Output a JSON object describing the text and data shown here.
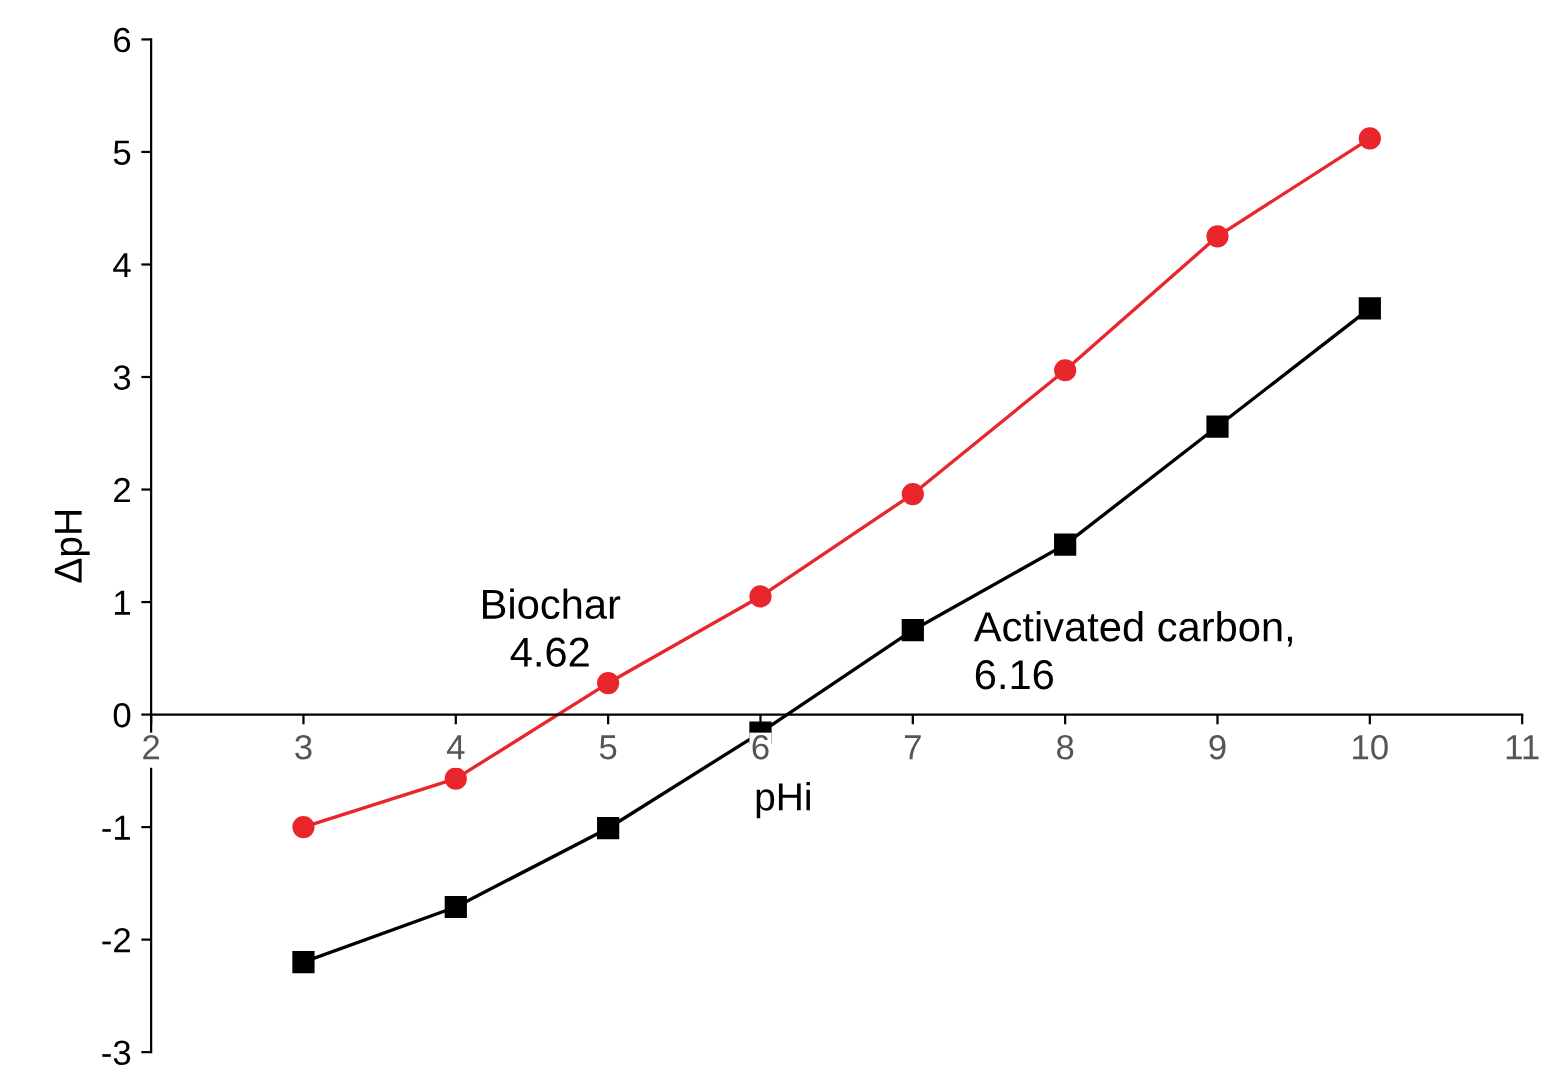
{
  "chart_data": {
    "type": "line",
    "xlabel": "pHi",
    "ylabel": "ΔpH",
    "x": [
      3,
      4,
      5,
      6,
      7,
      8,
      9,
      10
    ],
    "series": [
      {
        "color": "#e8262b",
        "marker": "circle",
        "values": [
          -1.0,
          -0.57,
          0.28,
          1.05,
          1.96,
          3.06,
          4.25,
          5.12
        ]
      },
      {
        "color": "#000000",
        "marker": "square",
        "values": [
          -2.2,
          -1.71,
          -1.01,
          -0.16,
          0.75,
          1.51,
          2.56,
          3.61
        ]
      }
    ],
    "xlim": [
      2,
      11
    ],
    "xticks": [
      2,
      3,
      4,
      5,
      6,
      7,
      8,
      9,
      10,
      11
    ],
    "ylim": [
      -3,
      6
    ],
    "yticks": [
      -3,
      -2,
      -1,
      0,
      1,
      2,
      3,
      4,
      5,
      6
    ],
    "grid": false,
    "legend": false,
    "line_style": "solid",
    "annotations": [
      "Biochar\n4.62",
      "Activated carbon,\n6.16"
    ]
  }
}
